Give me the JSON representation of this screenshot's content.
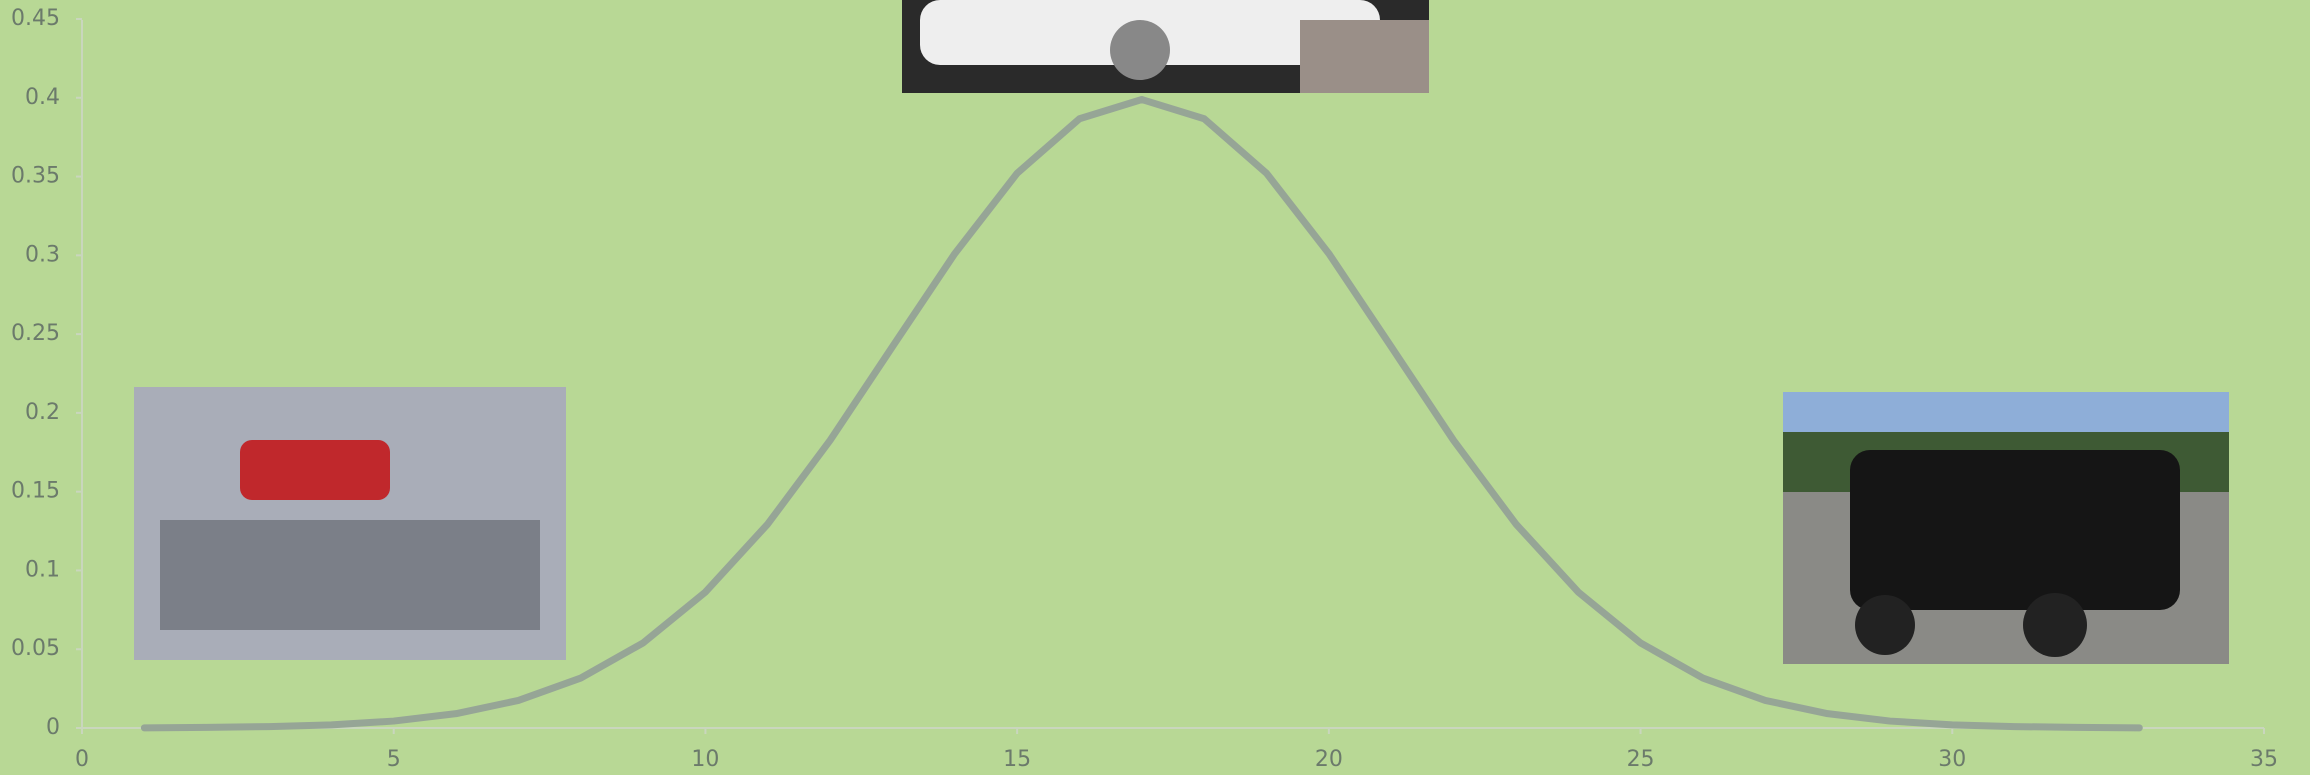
{
  "chart_data": {
    "type": "line",
    "x": [
      1,
      2,
      3,
      4,
      5,
      6,
      7,
      8,
      9,
      10,
      11,
      12,
      13,
      14,
      15,
      16,
      17,
      18,
      19,
      20,
      21,
      22,
      23,
      24,
      25,
      26,
      27,
      28,
      29,
      30,
      31,
      32,
      33
    ],
    "series": [
      {
        "color": "#96a596",
        "values": [
          0.0001,
          0.0004,
          0.0009,
          0.002,
          0.0044,
          0.0091,
          0.0175,
          0.0317,
          0.054,
          0.0863,
          0.1295,
          0.1826,
          0.242,
          0.3011,
          0.3521,
          0.3867,
          0.3989,
          0.3867,
          0.3521,
          0.3011,
          0.242,
          0.1826,
          0.1295,
          0.0863,
          0.054,
          0.0317,
          0.0175,
          0.0091,
          0.0044,
          0.002,
          0.0009,
          0.0004,
          0.0001
        ]
      }
    ],
    "xlim": [
      0,
      35
    ],
    "xticks": [
      0,
      5,
      10,
      15,
      20,
      25,
      30,
      35
    ],
    "ylim": [
      0,
      0.45
    ],
    "yticks": [
      0,
      0.05,
      0.1,
      0.15,
      0.2,
      0.25,
      0.3,
      0.35,
      0.4,
      0.45
    ],
    "grid": false
  }
}
